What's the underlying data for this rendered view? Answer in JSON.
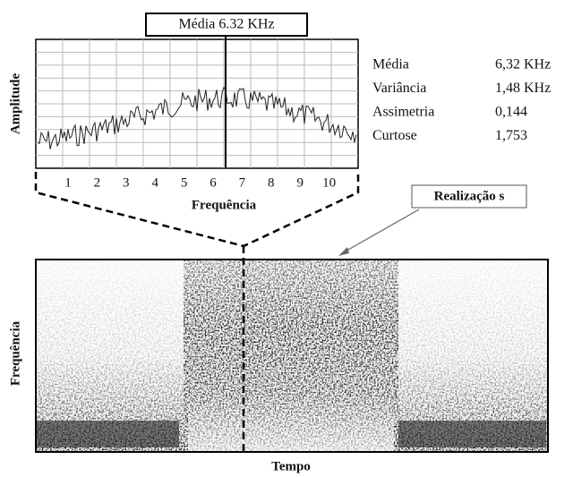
{
  "spectrum": {
    "marker_label": "Média 6.32 KHz",
    "y_label": "Amplitude",
    "x_label": "Frequência",
    "xticks": [
      "1",
      "2",
      "3",
      "4",
      "5",
      "6",
      "7",
      "8",
      "9",
      "10"
    ]
  },
  "stats": {
    "rows": [
      [
        "Média",
        "6,32 KHz"
      ],
      [
        "Variância",
        "1,48 KHz"
      ],
      [
        "Assimetria",
        "0,144"
      ],
      [
        "Curtose",
        "1,753"
      ]
    ]
  },
  "annotation": "Realização s",
  "spectrogram": {
    "y_label": "Frequência",
    "x_label": "Tempo"
  }
}
